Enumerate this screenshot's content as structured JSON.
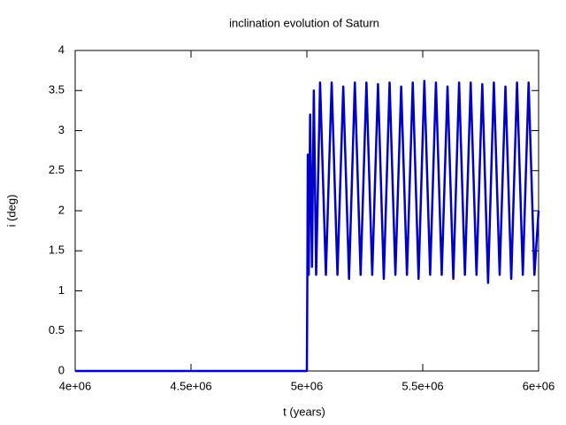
{
  "chart_data": {
    "type": "line",
    "title": "inclination evolution of Saturn",
    "x_label": "t (years)",
    "y_label": "i (deg)",
    "xlim": [
      4000000,
      6000000
    ],
    "xticks": [
      {
        "value": 4000000,
        "label": "4e+06"
      },
      {
        "value": 4500000,
        "label": "4.5e+06"
      },
      {
        "value": 5000000,
        "label": "5e+06"
      },
      {
        "value": 5500000,
        "label": "5.5e+06"
      },
      {
        "value": 6000000,
        "label": "6e+06"
      }
    ],
    "ylim": [
      0,
      4
    ],
    "yticks": [
      0,
      0.5,
      1,
      1.5,
      2,
      2.5,
      3,
      3.5,
      4
    ],
    "grid": false,
    "series": [
      {
        "color": "#0000cc",
        "x": [
          4000000,
          5000000,
          5002000,
          5004000,
          5008000,
          5014000,
          5022000,
          5030000,
          5040000,
          5057000,
          5082000,
          5107000,
          5132000,
          5157000,
          5182000,
          5207000,
          5232000,
          5257000,
          5282000,
          5307000,
          5332000,
          5357000,
          5382000,
          5407000,
          5432000,
          5457000,
          5482000,
          5507000,
          5532000,
          5557000,
          5582000,
          5607000,
          5632000,
          5657000,
          5682000,
          5707000,
          5732000,
          5757000,
          5782000,
          5807000,
          5832000,
          5857000,
          5882000,
          5907000,
          5932000,
          5957000,
          5982000,
          6000000
        ],
        "values": [
          0,
          0,
          1.1,
          2.7,
          1.2,
          3.2,
          1.3,
          3.5,
          1.2,
          3.6,
          1.2,
          3.6,
          1.2,
          3.55,
          1.15,
          3.6,
          1.2,
          3.6,
          1.2,
          3.58,
          1.15,
          3.6,
          1.2,
          3.55,
          1.2,
          3.6,
          1.15,
          3.62,
          1.2,
          3.6,
          1.2,
          3.55,
          1.15,
          3.6,
          1.2,
          3.6,
          1.2,
          3.58,
          1.1,
          3.6,
          1.2,
          3.55,
          1.15,
          3.6,
          1.2,
          3.6,
          1.2,
          2.0
        ]
      }
    ]
  }
}
